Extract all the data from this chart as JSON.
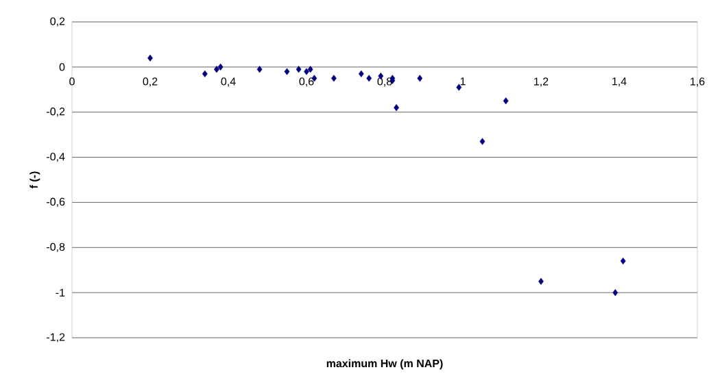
{
  "chart_data": {
    "type": "scatter",
    "xlabel": "maximum Hw (m NAP)",
    "ylabel": "f (-)",
    "x": [
      0.2,
      0.34,
      0.37,
      0.38,
      0.48,
      0.55,
      0.58,
      0.6,
      0.61,
      0.62,
      0.67,
      0.74,
      0.76,
      0.79,
      0.82,
      0.82,
      0.83,
      0.89,
      0.99,
      1.05,
      1.11,
      1.2,
      1.39,
      1.41
    ],
    "series": [
      {
        "color": "#000080",
        "values": [
          0.04,
          -0.03,
          -0.01,
          0.0,
          -0.01,
          -0.02,
          -0.01,
          -0.02,
          -0.01,
          -0.05,
          -0.05,
          -0.03,
          -0.05,
          -0.04,
          -0.05,
          -0.06,
          -0.18,
          -0.05,
          -0.09,
          -0.33,
          -0.15,
          -0.95,
          -1.0,
          -0.86
        ]
      }
    ],
    "xlim": [
      0,
      1.6
    ],
    "ylim": [
      -1.2,
      0.2
    ],
    "xticks": [
      {
        "value": 0,
        "label": "0"
      },
      {
        "value": 0.2,
        "label": "0,2"
      },
      {
        "value": 0.4,
        "label": "0,4"
      },
      {
        "value": 0.6,
        "label": "0,6"
      },
      {
        "value": 0.8,
        "label": "0,8"
      },
      {
        "value": 1,
        "label": "1"
      },
      {
        "value": 1.2,
        "label": "1,2"
      },
      {
        "value": 1.4,
        "label": "1,4"
      },
      {
        "value": 1.6,
        "label": "1,6"
      }
    ],
    "yticks": [
      {
        "value": 0.2,
        "label": "0,2"
      },
      0,
      {
        "value": -0.2,
        "label": "-0,2"
      },
      {
        "value": -0.4,
        "label": "-0,4"
      },
      {
        "value": -0.6,
        "label": "-0,6"
      },
      {
        "value": -0.8,
        "label": "-0,8"
      },
      {
        "value": -1,
        "label": "-1"
      },
      {
        "value": -1.2,
        "label": "-1,2"
      }
    ],
    "grid": "y",
    "marker": "diamond"
  }
}
